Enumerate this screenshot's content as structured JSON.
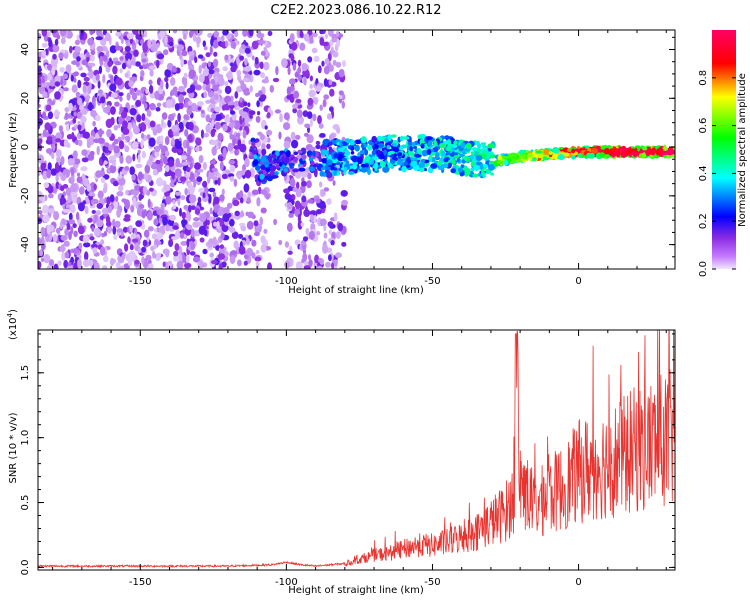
{
  "title": "C2E2.2023.086.10.22.R12",
  "colors": {
    "snr_line": "#e8332f",
    "axis": "#000000"
  },
  "chart_data": [
    {
      "type": "heatmap",
      "xlabel": "Height of straight line (km)",
      "ylabel": "Frequency (Hz)",
      "xlim": [
        -185,
        33
      ],
      "ylim": [
        -50,
        48
      ],
      "x_ticks": [
        -150,
        -100,
        -50,
        0
      ],
      "y_ticks": [
        -40,
        -20,
        0,
        20,
        40
      ],
      "grid": false,
      "colorbar": {
        "label": "Normalized spectral amplitude",
        "range": [
          0.0,
          1.0
        ],
        "ticks": [
          "0.0",
          "0.2",
          "0.4",
          "0.6",
          "0.8"
        ],
        "colormap": [
          "#f2e6ff",
          "#8a2be2",
          "#0000ff",
          "#00ffff",
          "#00ff00",
          "#ffff00",
          "#ff0000",
          "#ff0066"
        ]
      },
      "regions": [
        {
          "x_range": [
            -185,
            -112
          ],
          "y_range": [
            -50,
            48
          ],
          "level": 0.25,
          "pattern": "scattered noise"
        },
        {
          "x_range": [
            -112,
            -80
          ],
          "y_range": [
            -50,
            48
          ],
          "level": 0.2,
          "pattern": "scattered noise with gap near -103"
        },
        {
          "x_range": [
            -112,
            -100
          ],
          "y_range": [
            -15,
            -5
          ],
          "level": 0.35,
          "pattern": "signal band"
        },
        {
          "x_range": [
            -90,
            -28
          ],
          "y_range": [
            -12,
            8
          ],
          "level": 0.45,
          "pattern": "signal band"
        },
        {
          "x_range": [
            -28,
            33
          ],
          "y_range": [
            -4,
            1
          ],
          "level": 0.8,
          "pattern": "strong narrow band"
        }
      ],
      "ridge": [
        {
          "x": -110,
          "y": -10
        },
        {
          "x": -100,
          "y": -6
        },
        {
          "x": -80,
          "y": -4
        },
        {
          "x": -60,
          "y": -2
        },
        {
          "x": -45,
          "y": -3
        },
        {
          "x": -30,
          "y": -6
        },
        {
          "x": -20,
          "y": -4
        },
        {
          "x": 0,
          "y": -2
        },
        {
          "x": 20,
          "y": -2
        },
        {
          "x": 33,
          "y": -2
        }
      ]
    },
    {
      "type": "line",
      "xlabel": "Height of straight line (km)",
      "ylabel": "SNR (10 * v/v)",
      "y_scale_label": "(x10",
      "y_scale_exponent": "4",
      "y_scale_close": ")",
      "xlim": [
        -185,
        33
      ],
      "ylim": [
        -0.02,
        1.83
      ],
      "x_ticks": [
        -150,
        -100,
        -50,
        0
      ],
      "y_ticks": [
        "0.0",
        "0.5",
        "1.0",
        "1.5"
      ],
      "grid": false,
      "series": [
        {
          "x": [
            -185,
            -160,
            -140,
            -120,
            -105,
            -100,
            -95,
            -90,
            -85,
            -80,
            -75,
            -70,
            -65,
            -60,
            -55,
            -50,
            -45,
            -40,
            -35,
            -30,
            -25,
            -22,
            -21,
            -20,
            -15,
            -10,
            -5,
            0,
            5,
            10,
            15,
            20,
            25,
            30,
            33
          ],
          "y": [
            0.01,
            0.01,
            0.01,
            0.01,
            0.02,
            0.04,
            0.02,
            0.01,
            0.02,
            0.03,
            0.08,
            0.12,
            0.14,
            0.18,
            0.22,
            0.22,
            0.25,
            0.3,
            0.35,
            0.45,
            0.55,
            0.7,
            1.8,
            0.85,
            0.6,
            0.72,
            0.8,
            0.95,
            1.0,
            1.05,
            1.1,
            1.18,
            1.22,
            1.27,
            1.28
          ]
        }
      ]
    }
  ]
}
